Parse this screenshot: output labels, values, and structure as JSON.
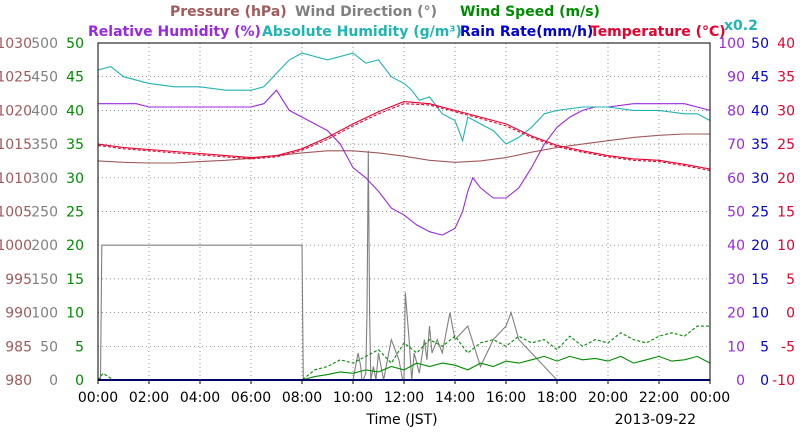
{
  "chart_data": {
    "type": "line",
    "title_rows": [
      [
        {
          "id": "pressure",
          "text": "Pressure (hPa)",
          "color": "#a05a5a"
        },
        {
          "id": "wind_dir",
          "text": "Wind Direction (°)",
          "color": "#808080"
        },
        {
          "id": "wind_speed",
          "text": "Wind Speed (m/s)",
          "color": "#008c00"
        }
      ],
      [
        {
          "id": "rh",
          "text": "Relative Humidity (%)",
          "color": "#9a28e0"
        },
        {
          "id": "ah",
          "text": "Absolute Humidity (g/m³)",
          "color": "#20b4b4"
        },
        {
          "id": "rain",
          "text": "Rain Rate(mm/h)",
          "color": "#0000d0"
        },
        {
          "id": "temp",
          "text": "Temperature (°C)",
          "color": "#e6002e"
        }
      ]
    ],
    "ah_scale_note": "x0.2",
    "xlabel": "Time (JST)",
    "date_label": "2013-09-22",
    "x_ticks": [
      "00:00",
      "02:00",
      "04:00",
      "06:00",
      "08:00",
      "10:00",
      "12:00",
      "14:00",
      "16:00",
      "18:00",
      "20:00",
      "22:00",
      "00:00"
    ],
    "xlim_hours": [
      0,
      24
    ],
    "grid": true,
    "axes_left": [
      {
        "id": "pressure",
        "color": "#a05a5a",
        "range": [
          980,
          1030
        ],
        "ticks": [
          "1030",
          "1025",
          "1020",
          "1015",
          "1010",
          "1005",
          "1000",
          "995",
          "990",
          "985",
          "980"
        ]
      },
      {
        "id": "wind_dir",
        "color": "#808080",
        "range": [
          0,
          500
        ],
        "ticks": [
          "500",
          "450",
          "400",
          "350",
          "300",
          "250",
          "200",
          "150",
          "100",
          "50",
          "0"
        ]
      },
      {
        "id": "wind_speed",
        "color": "#008c00",
        "range": [
          0,
          50
        ],
        "ticks": [
          "50",
          "45",
          "40",
          "35",
          "30",
          "25",
          "20",
          "15",
          "10",
          "5",
          "0"
        ]
      }
    ],
    "axes_right": [
      {
        "id": "rh_ah",
        "color": "#9a28e0",
        "range": [
          0,
          100
        ],
        "ticks": [
          "100",
          "90",
          "80",
          "70",
          "60",
          "50",
          "40",
          "30",
          "20",
          "10",
          "0"
        ]
      },
      {
        "id": "rain",
        "color": "#0000d0",
        "range": [
          0,
          50
        ],
        "ticks": [
          "50",
          "45",
          "40",
          "35",
          "30",
          "25",
          "20",
          "15",
          "10",
          "5",
          "0"
        ]
      },
      {
        "id": "temp",
        "color": "#e6002e",
        "range": [
          -10,
          40
        ],
        "ticks": [
          "40",
          "35",
          "30",
          "25",
          "20",
          "15",
          "10",
          "5",
          "0",
          "-5",
          "-10"
        ]
      }
    ],
    "series": [
      {
        "id": "wind_dir",
        "name": "Wind Direction",
        "color": "#808080",
        "scale": "wind_dir",
        "x": [
          0,
          0.1,
          0.15,
          0.2,
          0.25,
          7.95,
          8.0,
          8.05,
          8.1,
          9.9,
          10.0,
          10.2,
          10.3,
          10.35,
          10.4,
          10.5,
          10.55,
          10.6,
          10.65,
          10.7,
          10.75,
          10.8,
          10.9,
          11.0,
          11.2,
          11.5,
          11.8,
          11.95,
          12.0,
          12.05,
          12.2,
          12.3,
          12.4,
          12.6,
          12.8,
          12.9,
          13.0,
          13.1,
          13.3,
          13.5,
          13.8,
          14.0,
          14.5,
          15.0,
          15.5,
          16.0,
          16.2,
          16.5,
          17.0,
          18.0,
          20.0,
          21.0,
          22.0,
          23.0,
          24.0
        ],
        "y": [
          0,
          0,
          200,
          200,
          200,
          200,
          200,
          0,
          0,
          0,
          0,
          40,
          20,
          0,
          0,
          10,
          100,
          340,
          100,
          0,
          10,
          20,
          0,
          40,
          0,
          60,
          30,
          0,
          0,
          130,
          60,
          0,
          40,
          10,
          60,
          30,
          80,
          40,
          60,
          40,
          100,
          60,
          80,
          20,
          60,
          80,
          100,
          60,
          40,
          0,
          0,
          0,
          0,
          0,
          0
        ]
      },
      {
        "id": "pressure",
        "name": "Pressure",
        "color": "#a05a5a",
        "scale": "pressure",
        "x": [
          0,
          1,
          2,
          3,
          4,
          5,
          6,
          7,
          8,
          9,
          10,
          11,
          12,
          13,
          14,
          15,
          16,
          17,
          18,
          19,
          20,
          21,
          22,
          23,
          24
        ],
        "y": [
          1012.5,
          1012.3,
          1012.2,
          1012.2,
          1012.4,
          1012.6,
          1012.9,
          1013.3,
          1013.7,
          1014.0,
          1014.0,
          1013.7,
          1013.2,
          1012.6,
          1012.3,
          1012.5,
          1013.0,
          1013.8,
          1014.5,
          1015.0,
          1015.5,
          1016.0,
          1016.3,
          1016.5,
          1016.5
        ]
      },
      {
        "id": "rh",
        "name": "Relative Humidity",
        "color": "#9a28e0",
        "scale": "rh_ah",
        "x": [
          0,
          1,
          1.5,
          2,
          3,
          4,
          5,
          6,
          6.5,
          7,
          7.5,
          8,
          8.5,
          9,
          9.5,
          10,
          10.5,
          11,
          11.5,
          12,
          12.5,
          13,
          13.5,
          14,
          14.3,
          14.5,
          14.7,
          15,
          15.5,
          16,
          16.5,
          17,
          17.5,
          18,
          18.5,
          19,
          19.5,
          20,
          21,
          22,
          23,
          24
        ],
        "y": [
          82,
          82,
          82,
          81,
          81,
          81,
          81,
          81,
          82,
          86,
          80,
          78,
          76,
          74,
          70,
          63,
          60,
          56,
          51,
          49,
          46,
          44,
          43,
          45,
          50,
          56,
          60,
          57,
          54,
          54,
          57,
          63,
          70,
          75,
          78,
          80,
          81,
          81,
          82,
          82,
          82,
          80
        ]
      },
      {
        "id": "ah",
        "name": "Absolute Humidity",
        "color": "#20b4b4",
        "scale": "rh_ah",
        "x": [
          0,
          0.5,
          1,
          2,
          3,
          4,
          5,
          6,
          6.5,
          7,
          7.5,
          8,
          9,
          10,
          10.5,
          11,
          11.5,
          12,
          12.3,
          12.6,
          13,
          13.5,
          14,
          14.3,
          14.5,
          15,
          15.5,
          16,
          16.5,
          17,
          17.5,
          18,
          19,
          20,
          21,
          22,
          23,
          23.5,
          24
        ],
        "y": [
          92,
          93,
          90,
          88,
          87,
          87,
          86,
          86,
          87,
          91,
          95,
          97,
          95,
          97,
          94,
          95,
          90,
          88,
          86,
          83,
          84,
          79,
          77,
          71,
          78,
          76,
          74,
          70,
          72,
          75,
          79,
          80,
          81,
          81,
          80,
          80,
          79,
          79,
          77
        ]
      },
      {
        "id": "temp",
        "name": "Temperature",
        "color": "#e6002e",
        "scale": "temp",
        "x": [
          0,
          1,
          2,
          3,
          4,
          5,
          6,
          7,
          8,
          9,
          10,
          11,
          12,
          13,
          14,
          15,
          16,
          17,
          18,
          19,
          20,
          21,
          22,
          23,
          24
        ],
        "y": [
          25.0,
          24.5,
          24.2,
          23.9,
          23.6,
          23.3,
          23.0,
          23.3,
          24.3,
          26.0,
          28.0,
          29.8,
          31.3,
          31.0,
          30.0,
          29.0,
          28.0,
          26.2,
          24.8,
          24.0,
          23.3,
          22.8,
          22.6,
          22.0,
          21.3
        ]
      },
      {
        "id": "temp_dew",
        "name": "Temperature (dashed)",
        "color": "#e6002e",
        "scale": "temp",
        "dashed": true,
        "x": [
          0,
          1,
          2,
          3,
          4,
          5,
          6,
          7,
          8,
          9,
          10,
          11,
          12,
          13,
          14,
          15,
          16,
          17,
          18,
          19,
          20,
          21,
          22,
          23,
          24
        ],
        "y": [
          24.8,
          24.3,
          24.0,
          23.7,
          23.4,
          23.1,
          22.8,
          23.1,
          24.1,
          25.7,
          27.7,
          29.5,
          31.0,
          30.8,
          29.8,
          28.8,
          27.7,
          26.0,
          24.6,
          23.8,
          23.1,
          22.6,
          22.4,
          21.8,
          21.1
        ]
      },
      {
        "id": "wind_speed",
        "name": "Wind Speed",
        "color": "#008c00",
        "scale": "wind_speed",
        "x": [
          0,
          8,
          8.5,
          9,
          9.5,
          10,
          10.5,
          11,
          11.5,
          12,
          12.5,
          13,
          13.5,
          14,
          14.5,
          15,
          15.5,
          16,
          16.5,
          17,
          17.5,
          18,
          18.5,
          19,
          19.5,
          20,
          20.5,
          21,
          21.5,
          22,
          22.5,
          23,
          23.5,
          24
        ],
        "y": [
          0,
          0,
          0.5,
          0.8,
          1.2,
          1.0,
          1.5,
          1.2,
          2.0,
          1.5,
          2.5,
          2.0,
          2.5,
          2.2,
          1.5,
          2.5,
          2.0,
          2.8,
          2.5,
          3.0,
          3.5,
          2.8,
          3.5,
          3.0,
          3.2,
          2.8,
          3.5,
          2.5,
          3.0,
          3.5,
          2.8,
          3.0,
          3.5,
          2.5
        ]
      },
      {
        "id": "wind_gust",
        "name": "Wind Gust",
        "color": "#008c00",
        "scale": "wind_speed",
        "dashed": true,
        "x": [
          0,
          0.2,
          0.4,
          0.6,
          8,
          8.5,
          9,
          9.5,
          10,
          10.5,
          11,
          11.5,
          12,
          12.5,
          13,
          13.5,
          14,
          14.5,
          15,
          15.5,
          16,
          16.5,
          17,
          17.5,
          18,
          18.5,
          19,
          19.5,
          20,
          20.5,
          21,
          21.5,
          22,
          22.5,
          23,
          23.5,
          24
        ],
        "y": [
          0,
          1,
          0.5,
          0,
          0,
          1.5,
          2.0,
          3.0,
          2.5,
          3.5,
          4.5,
          2.5,
          5.5,
          4.0,
          6.0,
          5.0,
          6.5,
          4.0,
          5.5,
          6.0,
          5.0,
          6.5,
          5.5,
          6.0,
          4.5,
          6.5,
          5.0,
          6.0,
          5.5,
          7.0,
          6.0,
          5.5,
          6.5,
          7.0,
          6.5,
          8.0,
          8.0
        ]
      },
      {
        "id": "rain",
        "name": "Rain Rate",
        "color": "#0000d0",
        "scale": "rain",
        "x": [
          0,
          24
        ],
        "y": [
          0,
          0
        ]
      }
    ]
  }
}
